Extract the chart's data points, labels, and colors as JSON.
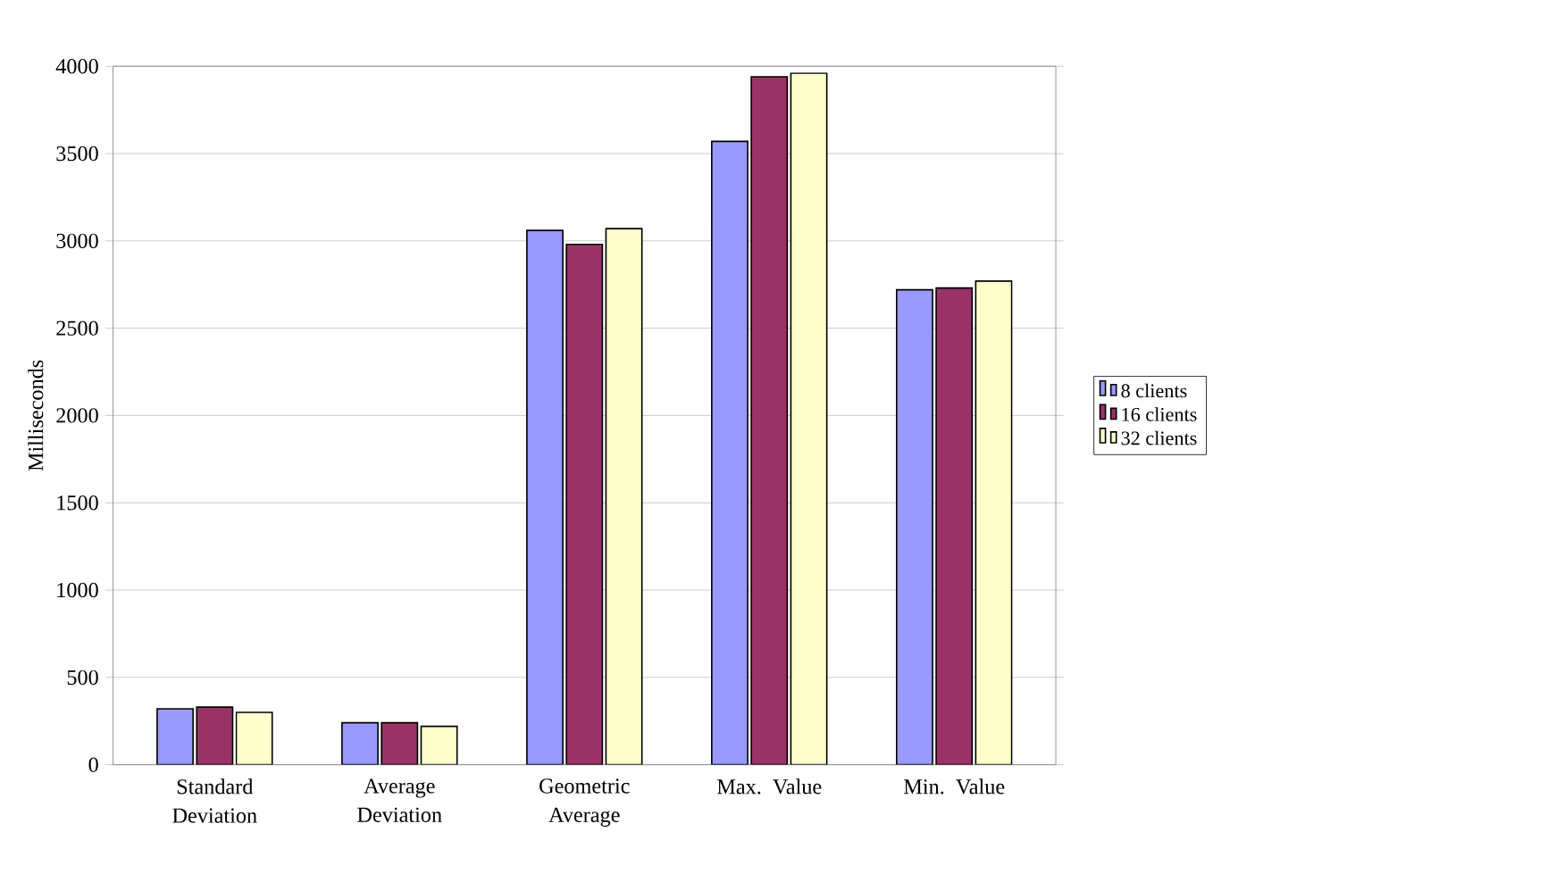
{
  "chart_data": {
    "type": "bar",
    "ylabel": "Milliseconds",
    "categories": [
      "Standard Deviation",
      "Average Deviation",
      "Geometric Average",
      "Max. Value",
      "Min. Value"
    ],
    "series": [
      {
        "name": "8 clients",
        "color": "#9999ff",
        "values": [
          320,
          240,
          3060,
          3570,
          2720
        ]
      },
      {
        "name": "16 clients",
        "color": "#993366",
        "values": [
          330,
          240,
          2980,
          3940,
          2730
        ]
      },
      {
        "name": "32 clients",
        "color": "#ffffcc",
        "values": [
          300,
          220,
          3070,
          3960,
          2770
        ]
      }
    ],
    "ylim": [
      0,
      4000
    ],
    "yticks": [
      0,
      500,
      1000,
      1500,
      2000,
      2500,
      3000,
      3500,
      4000
    ],
    "grid": "y",
    "legend": "right"
  }
}
